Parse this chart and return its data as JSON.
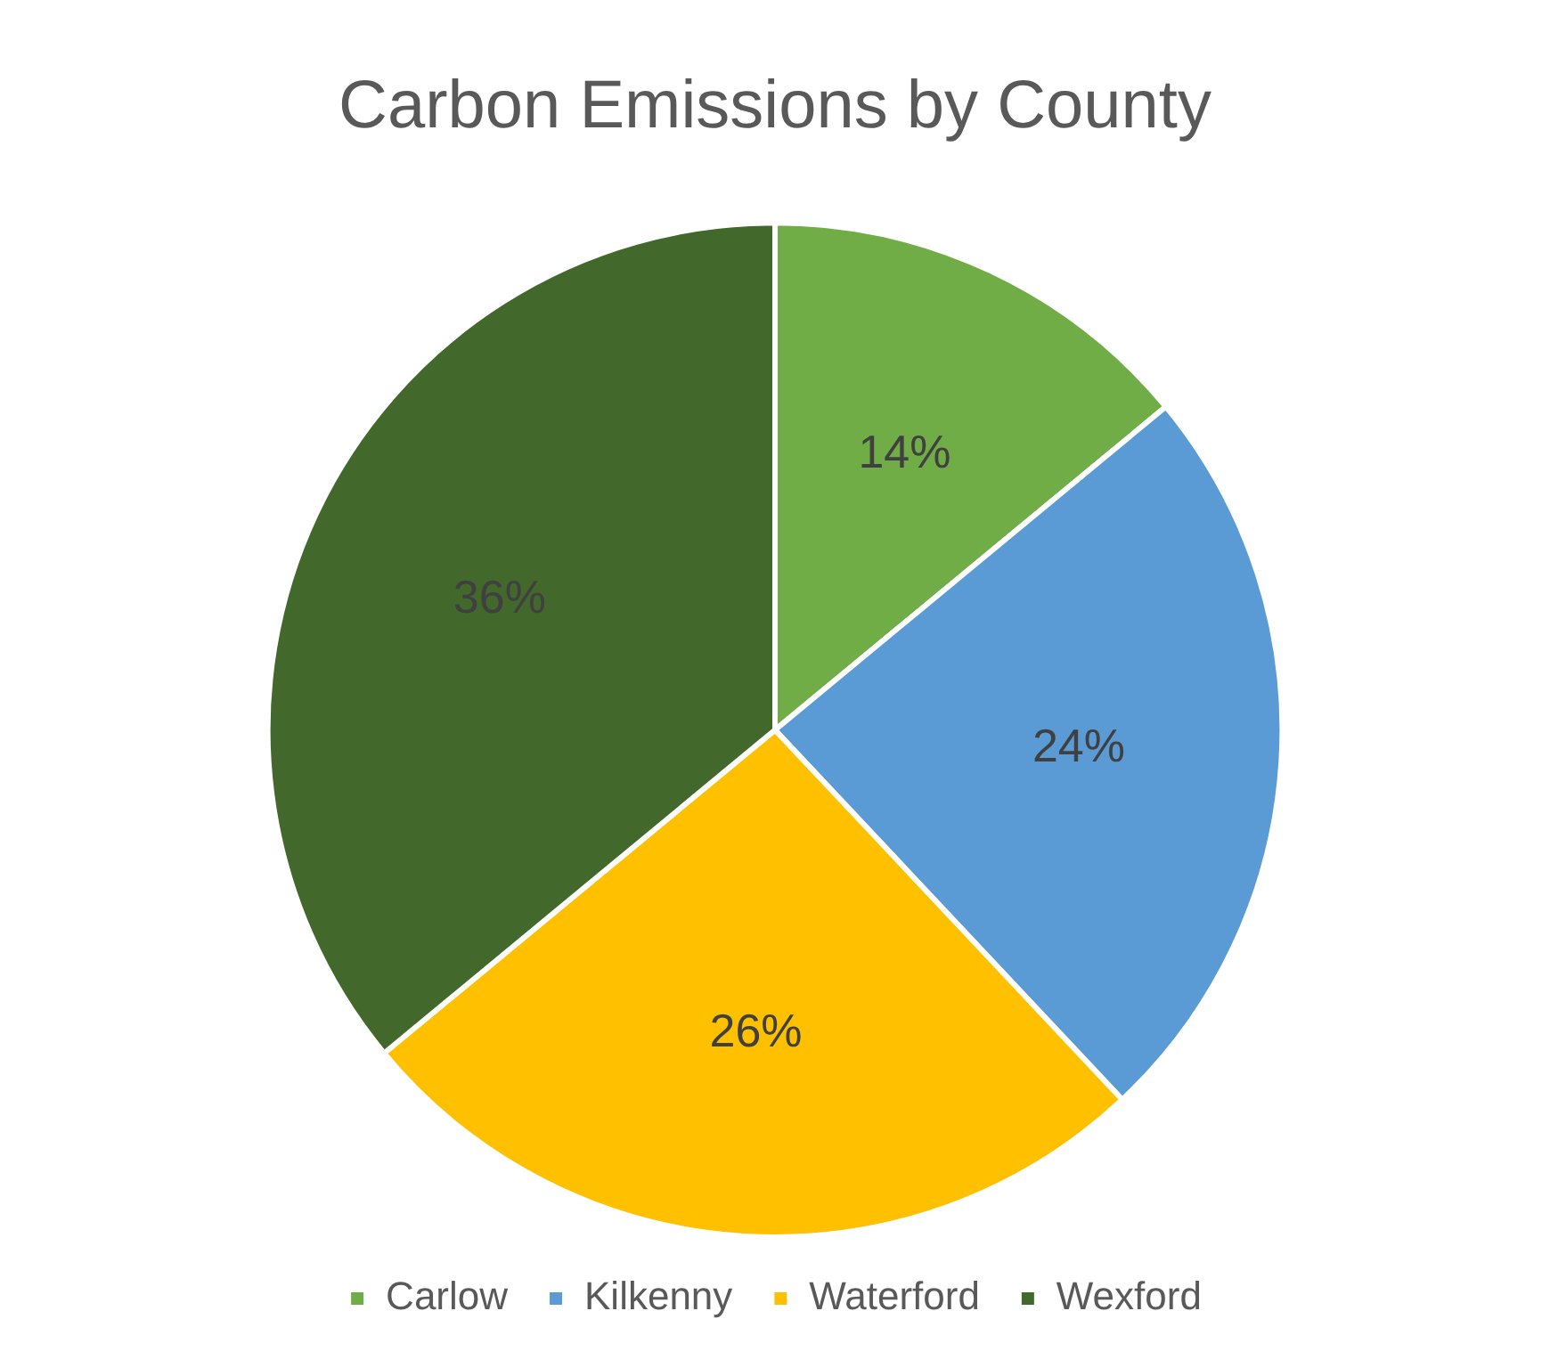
{
  "chart_data": {
    "type": "pie",
    "title": "Carbon Emissions by County",
    "categories": [
      "Carlow",
      "Kilkenny",
      "Waterford",
      "Wexford"
    ],
    "values": [
      14,
      24,
      26,
      36
    ],
    "colors": [
      "#70ad47",
      "#5b9bd5",
      "#ffc000",
      "#43682b"
    ],
    "value_labels": [
      "14%",
      "24%",
      "26%",
      "36%"
    ],
    "legend": "bottom"
  }
}
